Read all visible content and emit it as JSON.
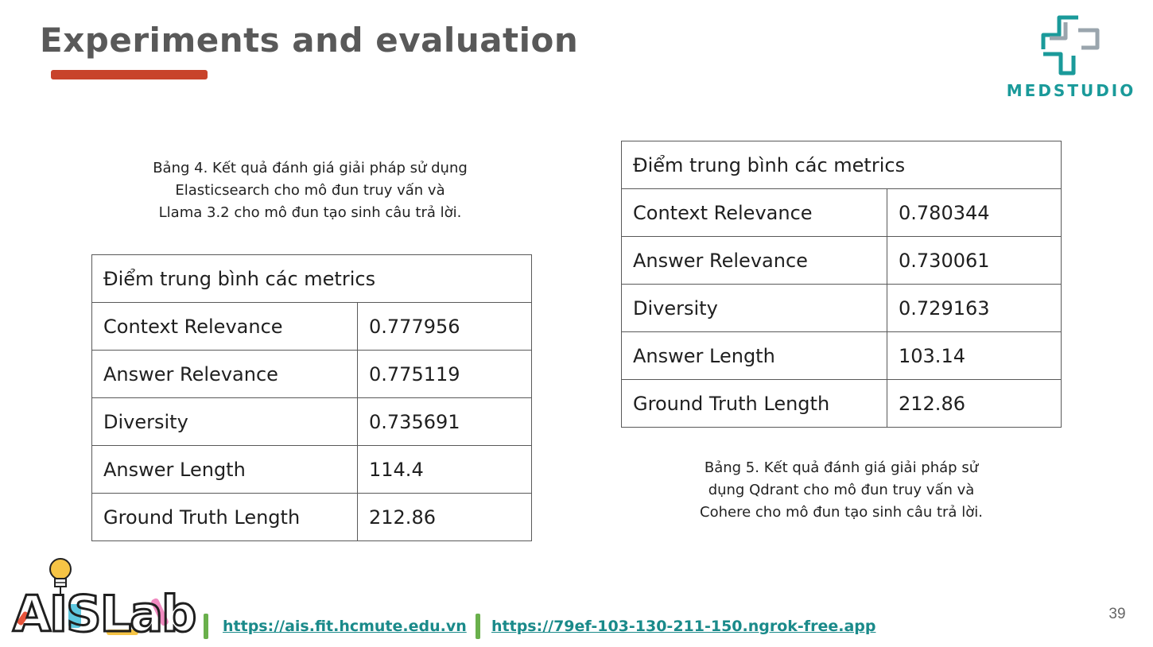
{
  "slide": {
    "title": "Experiments and evaluation",
    "page_number": "39"
  },
  "brand": {
    "medstudio": "MEDSTUDIO",
    "aislab": "AISLab",
    "teal_color": "#1a9a9a",
    "accent_color": "#c8432b",
    "divider_color": "#6ab04c"
  },
  "table_a": {
    "caption_lines": [
      "Bảng 4. Kết quả đánh giá giải pháp sử dụng",
      "Elasticsearch cho mô đun truy vấn và",
      "Llama 3.2 cho mô đun tạo sinh câu trả lời."
    ],
    "header": "Điểm trung bình các metrics",
    "rows": [
      {
        "metric": "Context Relevance",
        "value": "0.777956"
      },
      {
        "metric": "Answer Relevance",
        "value": "0.775119"
      },
      {
        "metric": "Diversity",
        "value": "0.735691"
      },
      {
        "metric": "Answer Length",
        "value": "114.4"
      },
      {
        "metric": "Ground Truth Length",
        "value": "212.86"
      }
    ]
  },
  "table_b": {
    "caption_lines": [
      "Bảng 5. Kết quả đánh giá giải pháp sử",
      "dụng Qdrant cho mô đun truy vấn và",
      "Cohere cho mô đun tạo sinh câu trả lời."
    ],
    "header": "Điểm trung bình các metrics",
    "rows": [
      {
        "metric": "Context Relevance",
        "value": "0.780344"
      },
      {
        "metric": "Answer Relevance",
        "value": "0.730061"
      },
      {
        "metric": "Diversity",
        "value": "0.729163"
      },
      {
        "metric": "Answer Length",
        "value": "103.14"
      },
      {
        "metric": "Ground Truth Length",
        "value": "212.86"
      }
    ]
  },
  "footer": {
    "links": [
      {
        "text": "https://ais.fit.hcmute.edu.vn"
      },
      {
        "text": "https://79ef-103-130-211-150.ngrok-free.app"
      }
    ]
  }
}
